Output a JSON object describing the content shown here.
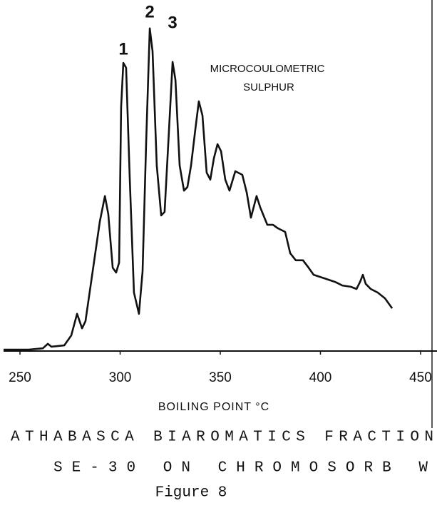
{
  "chart_data": {
    "type": "line",
    "annotations": [
      "1",
      "2",
      "3",
      "MICROCOULOMETRIC",
      "SULPHUR"
    ],
    "x_label": "BOILING POINT °C",
    "caption": [
      "ATHABASCA BIAROMATICS FRACTION",
      "SE-30 ON CHROMOSORB W",
      "Figure 8"
    ],
    "x": [
      241.8,
      254.3,
      261.4,
      263.9,
      265.7,
      272.1,
      275.6,
      278.5,
      281.0,
      282.7,
      286.3,
      289.9,
      292.4,
      294.1,
      296.3,
      298.0,
      299.5,
      300.5,
      301.6,
      303.0,
      304.8,
      306.9,
      309.4,
      311.2,
      313.0,
      314.8,
      316.2,
      318.3,
      320.5,
      322.2,
      324.0,
      326.2,
      327.6,
      329.7,
      331.9,
      333.6,
      335.4,
      337.5,
      339.3,
      341.1,
      343.2,
      345.0,
      346.8,
      348.6,
      350.4,
      352.5,
      354.6,
      357.5,
      361.0,
      363.2,
      365.3,
      368.1,
      369.9,
      373.5,
      376.3,
      378.8,
      382.4,
      384.9,
      387.7,
      391.3,
      394.1,
      396.6,
      402.0,
      407.3,
      410.9,
      415.1,
      418.0,
      419.8,
      421.2,
      422.6,
      425.1,
      428.6,
      432.2,
      435.8
    ],
    "series": [
      {
        "color": "#111111",
        "values": [
          0,
          0,
          0.4,
          1.8,
          0.9,
          1.3,
          4.4,
          11.1,
          6.6,
          8.8,
          24.3,
          39.8,
          47.6,
          42.0,
          25.4,
          23.9,
          27.0,
          75.2,
          88.9,
          87.4,
          53.1,
          17.7,
          11.1,
          24.3,
          64.2,
          99.6,
          92.5,
          57.1,
          41.6,
          42.7,
          63.7,
          89.2,
          83.6,
          57.1,
          49.3,
          50.4,
          57.1,
          68.1,
          77.0,
          72.6,
          54.9,
          52.7,
          59.3,
          63.7,
          61.5,
          52.7,
          49.3,
          55.3,
          54.2,
          48.7,
          40.9,
          47.6,
          44.2,
          38.7,
          38.7,
          37.6,
          36.5,
          29.9,
          27.7,
          27.7,
          25.4,
          23.2,
          22.1,
          21.0,
          19.9,
          19.5,
          18.8,
          21.0,
          23.2,
          20.4,
          18.8,
          17.7,
          15.9,
          12.8
        ]
      }
    ],
    "xlim": [
      241.8,
      458.2
    ],
    "ylim": [
      0,
      100
    ],
    "xticks": [
      250,
      300,
      350,
      400,
      450
    ]
  }
}
